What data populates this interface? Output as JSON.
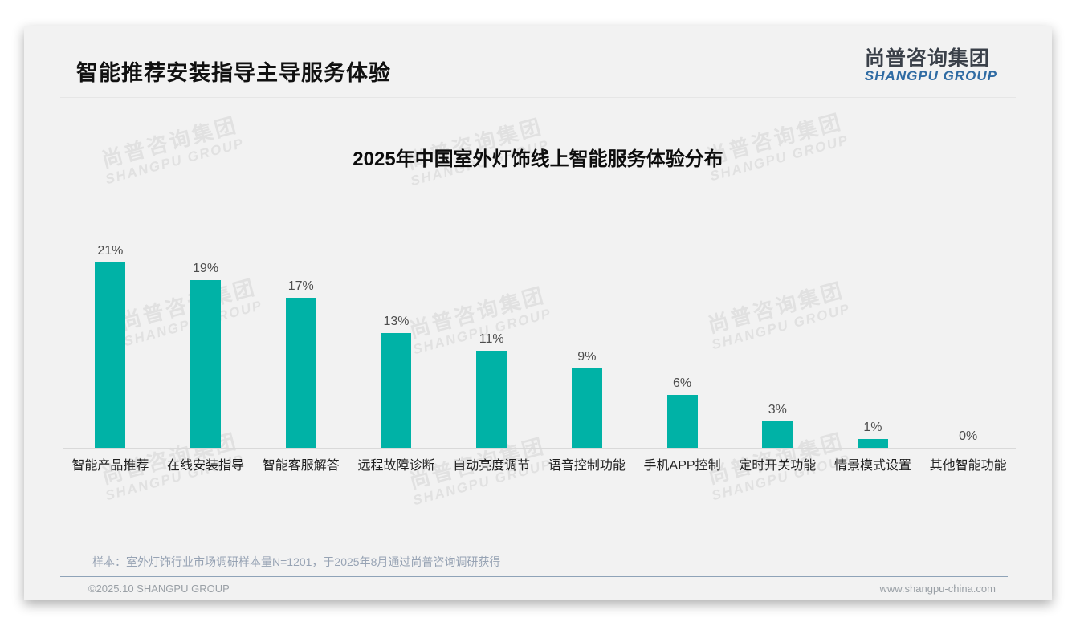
{
  "header": {
    "title": "智能推荐安装指导主导服务体验"
  },
  "logo": {
    "chinese": "尚普咨询集团",
    "english": "SHANGPU GROUP"
  },
  "watermark": {
    "line1": "尚普咨询集团",
    "line2": "SHANGPU GROUP"
  },
  "chart_data": {
    "type": "bar",
    "title": "2025年中国室外灯饰线上智能服务体验分布",
    "categories": [
      "智能产品推荐",
      "在线安装指导",
      "智能客服解答",
      "远程故障诊断",
      "自动亮度调节",
      "语音控制功能",
      "手机APP控制",
      "定时开关功能",
      "情景模式设置",
      "其他智能功能"
    ],
    "values": [
      21,
      19,
      17,
      13,
      11,
      9,
      6,
      3,
      1,
      0
    ],
    "unit": "%",
    "value_labels": [
      "21%",
      "19%",
      "17%",
      "13%",
      "11%",
      "9%",
      "6%",
      "3%",
      "1%",
      "0%"
    ],
    "bar_color": "#00b2a6",
    "ylim": [
      0,
      24
    ],
    "grid": false,
    "legend": null,
    "xlabel": "",
    "ylabel": ""
  },
  "note": {
    "text": "样本：室外灯饰行业市场调研样本量N=1201，于2025年8月通过尚普咨询调研获得"
  },
  "footer": {
    "left": "©2025.10 SHANGPU GROUP",
    "right": "www.shangpu-china.com"
  }
}
